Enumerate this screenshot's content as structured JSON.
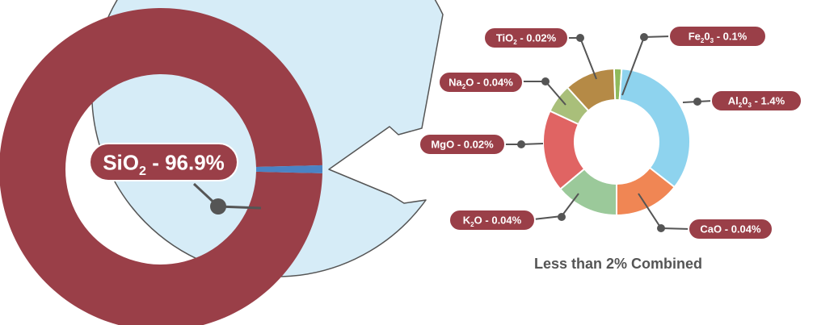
{
  "chart_data": [
    {
      "type": "pie",
      "variant": "donut",
      "title": "",
      "slices": [
        {
          "key": "sio2",
          "formula": [
            "SiO",
            "2",
            ""
          ],
          "value": 96.9,
          "label": "SiO2 - 96.9%",
          "value_text": " - 96.9%",
          "color": "#9a3f48"
        },
        {
          "key": "other",
          "value": 3.1,
          "label": "",
          "value_text": "",
          "color": "#4a83c4"
        }
      ]
    },
    {
      "type": "pie",
      "variant": "donut",
      "title": "Less than 2% Combined",
      "slices": [
        {
          "key": "fe2o3",
          "formula": [
            "Fe",
            "2",
            "0",
            "3",
            ""
          ],
          "value": 0.1,
          "label": "Fe2O3 - 0.1%",
          "value_text": " - 0.1%",
          "color": "#8fba5c"
        },
        {
          "key": "al2o3",
          "formula": [
            "Al",
            "2",
            "0",
            "3",
            ""
          ],
          "value": 1.4,
          "label": "Al2O3 - 1.4%",
          "value_text": " - 1.4%",
          "color": "#8ed3ee"
        },
        {
          "key": "cao",
          "formula": [
            "CaO"
          ],
          "value": 0.04,
          "label": "CaO - 0.04%",
          "value_text": " - 0.04%",
          "color": "#f08654"
        },
        {
          "key": "k2o",
          "formula": [
            "K",
            "2",
            "O"
          ],
          "value": 0.04,
          "label": "K2O - 0.04%",
          "value_text": " - 0.04%",
          "color": "#9bc99a"
        },
        {
          "key": "mgo",
          "formula": [
            "MgO"
          ],
          "value": 0.02,
          "label": "MgO - 0.02%",
          "value_text": " - 0.02%",
          "color": "#e06463"
        },
        {
          "key": "na2o",
          "formula": [
            "Na",
            "2",
            "O"
          ],
          "value": 0.04,
          "label": "Na2O - 0.04%",
          "value_text": " - 0.04%",
          "color": "#a9bf7a"
        },
        {
          "key": "tio2",
          "formula": [
            "TiO",
            "2",
            ""
          ],
          "value": 0.02,
          "label": "TiO2 - 0.02%",
          "value_text": " - 0.02%",
          "color": "#b58a46"
        }
      ]
    }
  ],
  "colors": {
    "label_pill": "#9a3f48",
    "bubble_fill": "#d6ecf7",
    "bubble_stroke": "#555555",
    "leader": "#555555",
    "caption": "#555555"
  }
}
